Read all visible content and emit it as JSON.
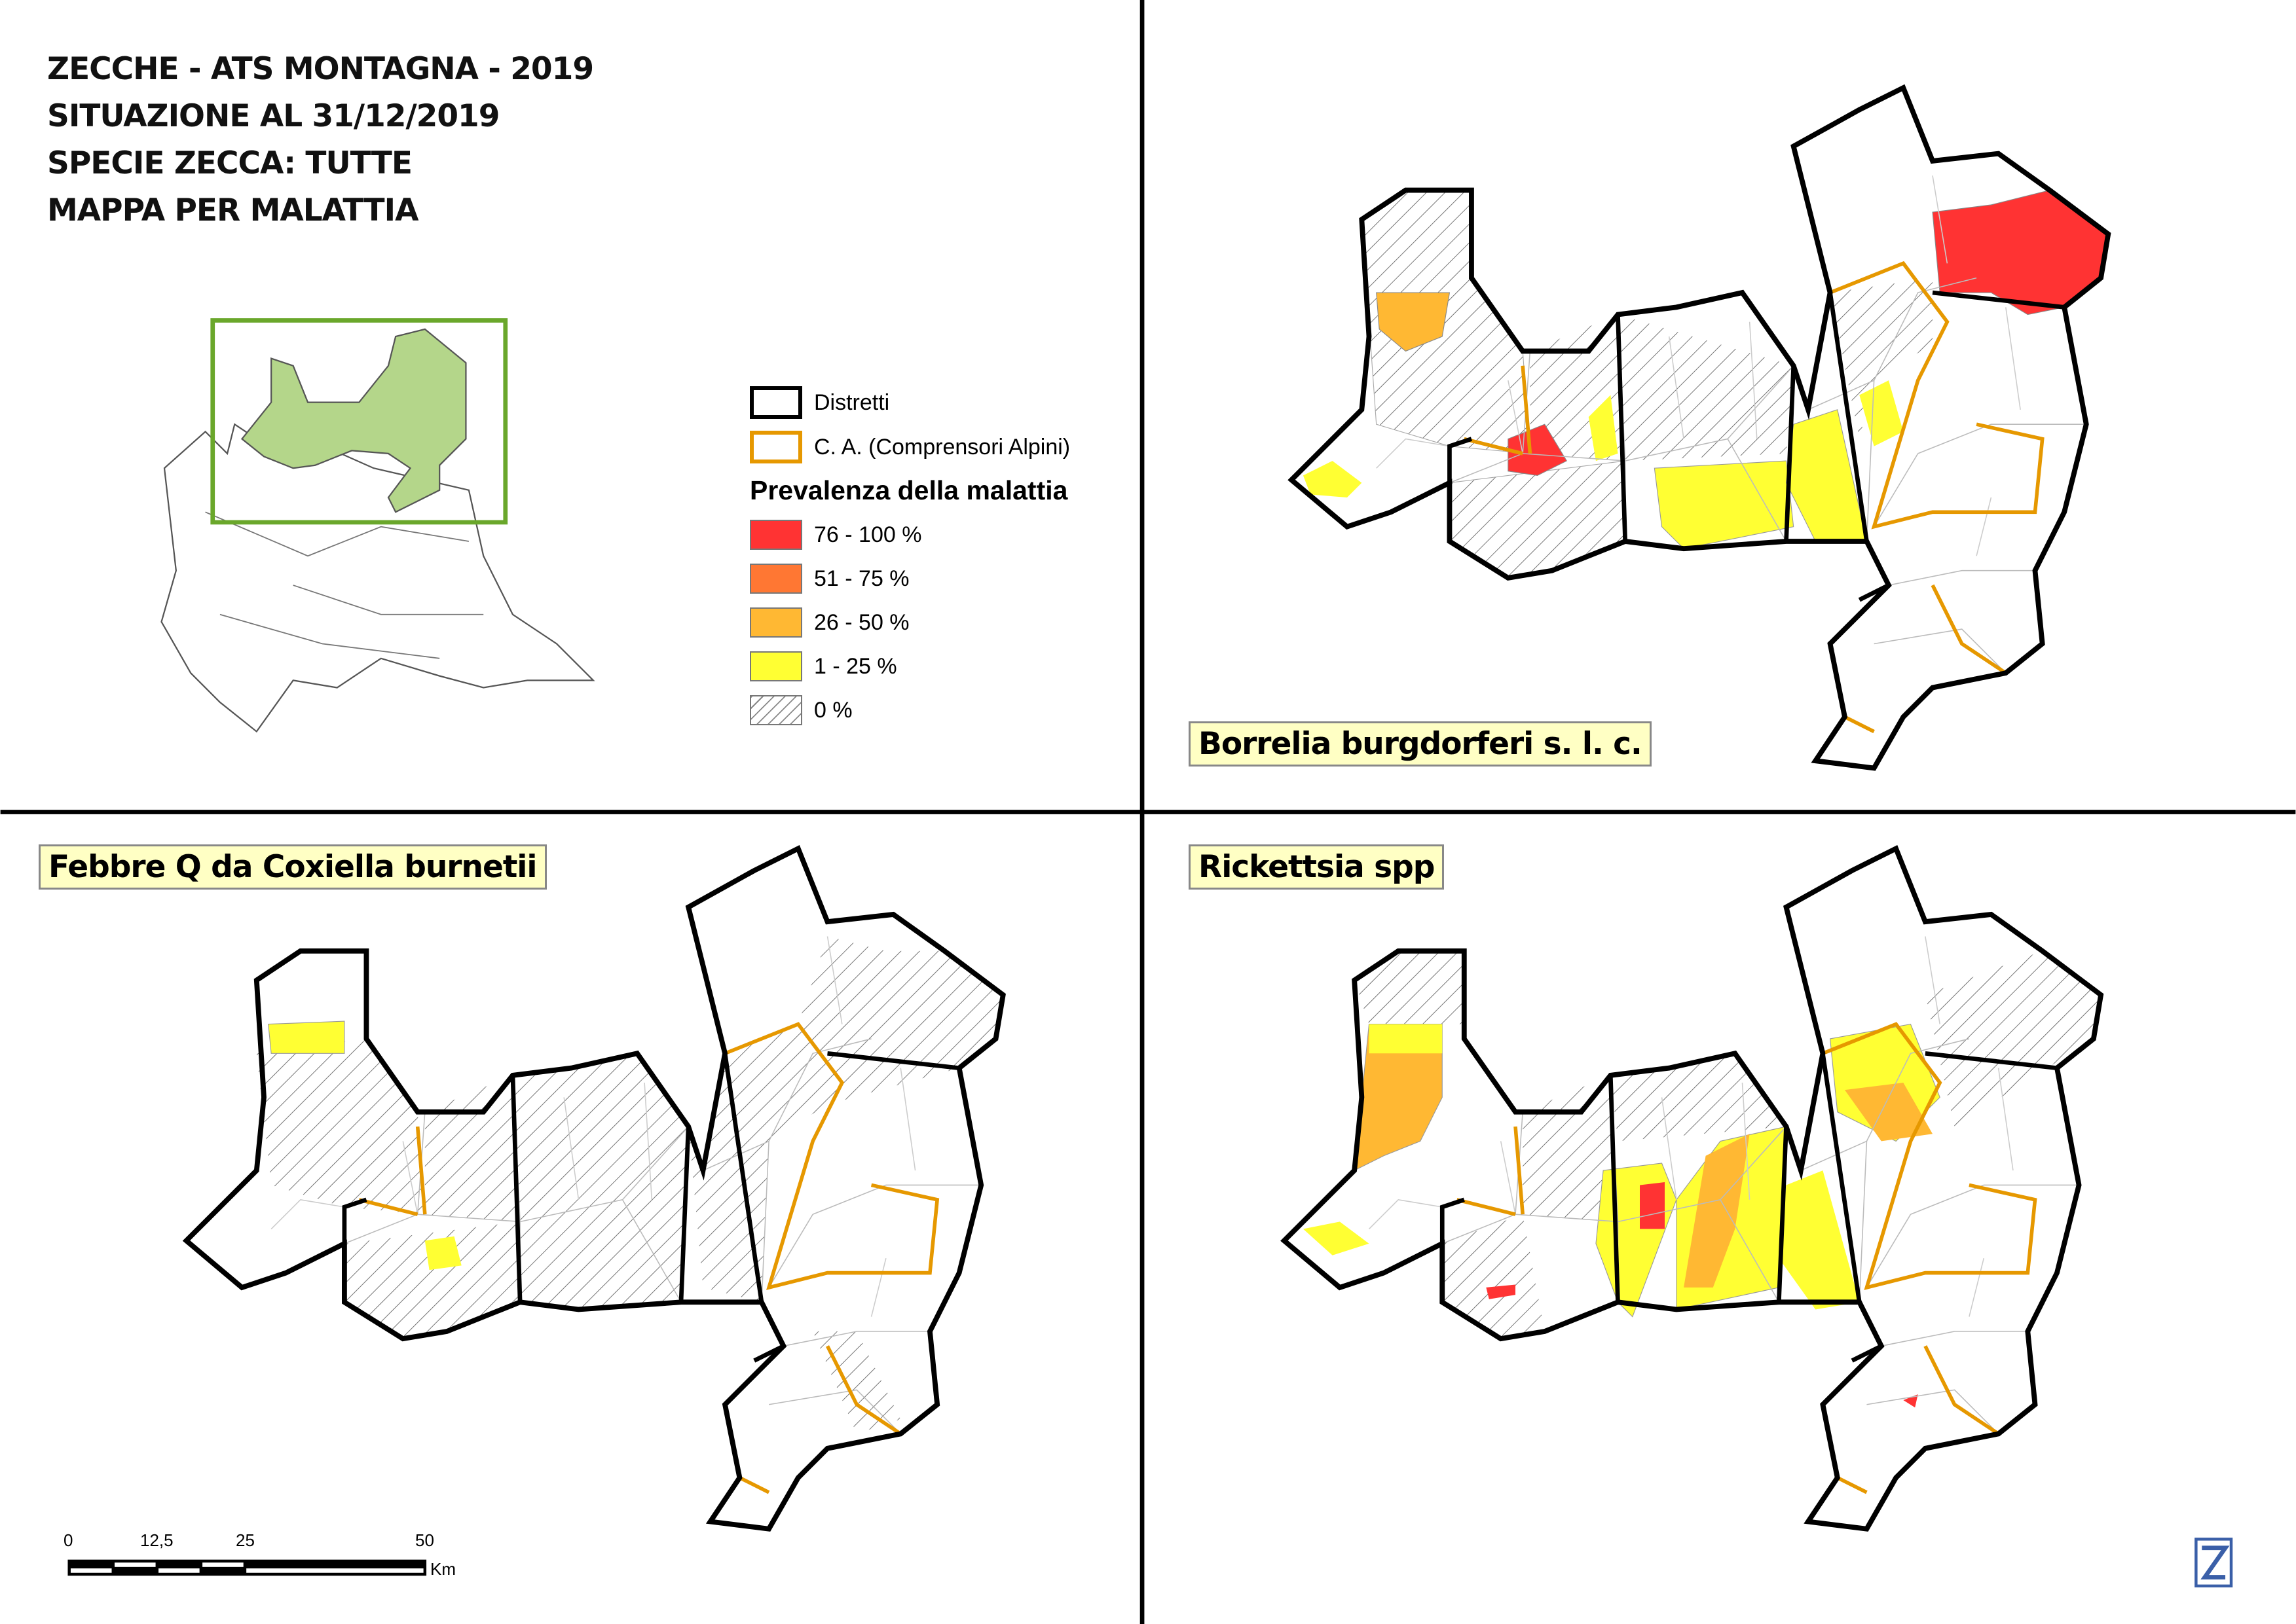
{
  "title": {
    "lines": [
      "ZECCHE - ATS MONTAGNA - 2019",
      "SITUAZIONE AL 31/12/2019",
      "SPECIE ZECCA: TUTTE",
      "MAPPA PER MALATTIA"
    ]
  },
  "legend": {
    "distretti": "Distretti",
    "ca": "C. A. (Comprensori Alpini)",
    "heading": "Prevalenza della malattia",
    "classes": [
      {
        "label": "76 - 100 %",
        "color": "#ff3333"
      },
      {
        "label": "51 - 75 %",
        "color": "#ff7733"
      },
      {
        "label": "26 - 50 %",
        "color": "#ffb833"
      },
      {
        "label": "1 - 25 %",
        "color": "#ffff33"
      },
      {
        "label": "0 %",
        "color": "hatch"
      }
    ]
  },
  "panels": {
    "borrelia": "Borrelia burgdorferi s. l. c.",
    "febbre_q": "Febbre Q da Coxiella burnetii",
    "rickettsia": "Rickettsia spp"
  },
  "scalebar": {
    "ticks": [
      "0",
      "12,5",
      "25",
      "50"
    ],
    "unit": "Km"
  },
  "colors": {
    "district": "#000000",
    "ca": "#e69800",
    "inset_area": "#b4d68a",
    "inset_frame": "#6aa72b"
  }
}
